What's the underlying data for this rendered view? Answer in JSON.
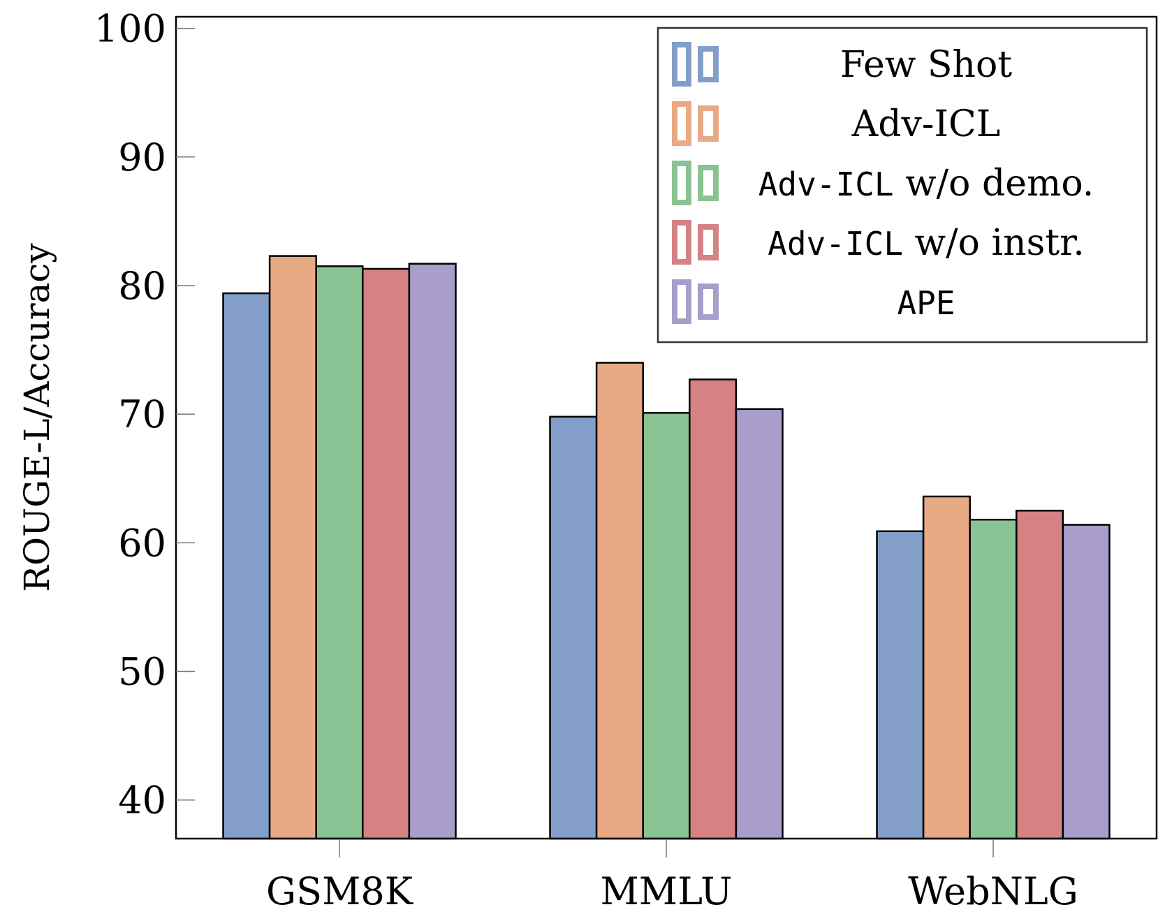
{
  "chart_data": {
    "type": "bar",
    "ylabel": "ROUGE-L/Accuracy",
    "xlabel": "",
    "categories": [
      "GSM8K",
      "MMLU",
      "WebNLG"
    ],
    "ylim": [
      37.0,
      100.9
    ],
    "yticks": [
      40,
      50,
      60,
      70,
      80,
      90,
      100
    ],
    "grid": false,
    "legend": "top-right",
    "series": [
      {
        "name": "Few Shot",
        "legend_parts": [
          {
            "text": "Few Shot",
            "mono": false
          }
        ],
        "color": "#839FC9",
        "values": [
          79.4,
          69.8,
          60.9
        ]
      },
      {
        "name": "Adv-ICL",
        "legend_parts": [
          {
            "text": "Adv-ICL",
            "mono": false
          }
        ],
        "color": "#E8A985",
        "values": [
          82.3,
          74.0,
          63.6
        ]
      },
      {
        "name": "Adv-ICL w/o demo.",
        "legend_parts": [
          {
            "text": "Adv-ICL",
            "mono": true
          },
          {
            "text": " w/o demo.",
            "mono": false
          }
        ],
        "color": "#8AC393",
        "values": [
          81.5,
          70.1,
          61.8
        ]
      },
      {
        "name": "Adv-ICL w/o instr.",
        "legend_parts": [
          {
            "text": "Adv-ICL",
            "mono": true
          },
          {
            "text": " w/o instr.",
            "mono": false
          }
        ],
        "color": "#D48284",
        "values": [
          81.3,
          72.7,
          62.5
        ]
      },
      {
        "name": "APE",
        "legend_parts": [
          {
            "text": "APE",
            "mono": true
          }
        ],
        "color": "#A89DCB",
        "values": [
          81.7,
          70.4,
          61.4
        ]
      }
    ]
  }
}
